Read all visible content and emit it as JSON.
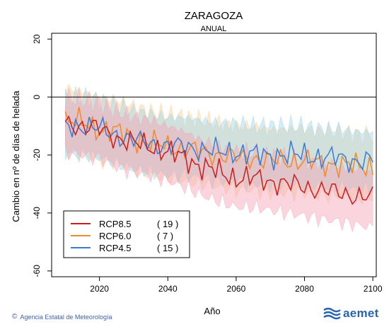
{
  "chart_data": {
    "type": "line",
    "title": "ZARAGOZA",
    "subtitle": "ANUAL",
    "xlabel": "Año",
    "ylabel": "Cambio en nº de días de helada",
    "xlim": [
      2006,
      2101
    ],
    "ylim": [
      -62,
      22
    ],
    "xticks": [
      2020,
      2040,
      2060,
      2080,
      2100
    ],
    "yticks": [
      -60,
      -40,
      -20,
      0,
      20
    ],
    "x_start": 2010,
    "x_end": 2100,
    "legend_position": "bottom-left",
    "series": [
      {
        "name": "RCP8.5",
        "count": "( 19 )",
        "color": "#cc1c1c",
        "band_color": "#f4a2b6",
        "knots": [
          [
            2010,
            -9
          ],
          [
            2015,
            -10
          ],
          [
            2020,
            -11
          ],
          [
            2025,
            -14
          ],
          [
            2030,
            -16
          ],
          [
            2035,
            -17
          ],
          [
            2040,
            -19
          ],
          [
            2045,
            -21
          ],
          [
            2050,
            -24
          ],
          [
            2055,
            -26
          ],
          [
            2060,
            -28
          ],
          [
            2065,
            -28
          ],
          [
            2070,
            -29
          ],
          [
            2075,
            -30
          ],
          [
            2080,
            -31
          ],
          [
            2085,
            -32
          ],
          [
            2090,
            -33
          ],
          [
            2095,
            -34
          ],
          [
            2100,
            -35
          ]
        ],
        "band_lower": -10,
        "band_upper": 9
      },
      {
        "name": "RCP6.0",
        "count": "(  7 )",
        "color": "#f08a2a",
        "band_color": "#fbcf96",
        "knots": [
          [
            2010,
            -8
          ],
          [
            2015,
            -9
          ],
          [
            2020,
            -11
          ],
          [
            2025,
            -12
          ],
          [
            2030,
            -14
          ],
          [
            2035,
            -16
          ],
          [
            2040,
            -17
          ],
          [
            2045,
            -18
          ],
          [
            2050,
            -19
          ],
          [
            2055,
            -20
          ],
          [
            2060,
            -21
          ],
          [
            2065,
            -21
          ],
          [
            2070,
            -22
          ],
          [
            2075,
            -22
          ],
          [
            2080,
            -22
          ],
          [
            2085,
            -23
          ],
          [
            2090,
            -23
          ],
          [
            2095,
            -24
          ],
          [
            2100,
            -24
          ]
        ],
        "band_lower": -11,
        "band_upper": 11
      },
      {
        "name": "RCP4.5",
        "count": "( 15 )",
        "color": "#3a7bd5",
        "band_color": "#9ed4e8",
        "knots": [
          [
            2010,
            -10
          ],
          [
            2015,
            -10
          ],
          [
            2020,
            -11
          ],
          [
            2025,
            -13
          ],
          [
            2030,
            -15
          ],
          [
            2035,
            -16
          ],
          [
            2040,
            -17
          ],
          [
            2045,
            -17
          ],
          [
            2050,
            -18
          ],
          [
            2055,
            -19
          ],
          [
            2060,
            -19
          ],
          [
            2065,
            -20
          ],
          [
            2070,
            -20
          ],
          [
            2075,
            -20
          ],
          [
            2080,
            -20
          ],
          [
            2085,
            -21
          ],
          [
            2090,
            -21
          ],
          [
            2095,
            -22
          ],
          [
            2100,
            -22
          ]
        ],
        "band_lower": -10,
        "band_upper": 10
      }
    ]
  },
  "footer": {
    "credit": "Agencia Estatal de Meteorología",
    "copyright_icon": "copyright-icon"
  },
  "logo": {
    "word": "aemet",
    "icon": "aemet-wave-icon",
    "color": "#2a63b0"
  }
}
